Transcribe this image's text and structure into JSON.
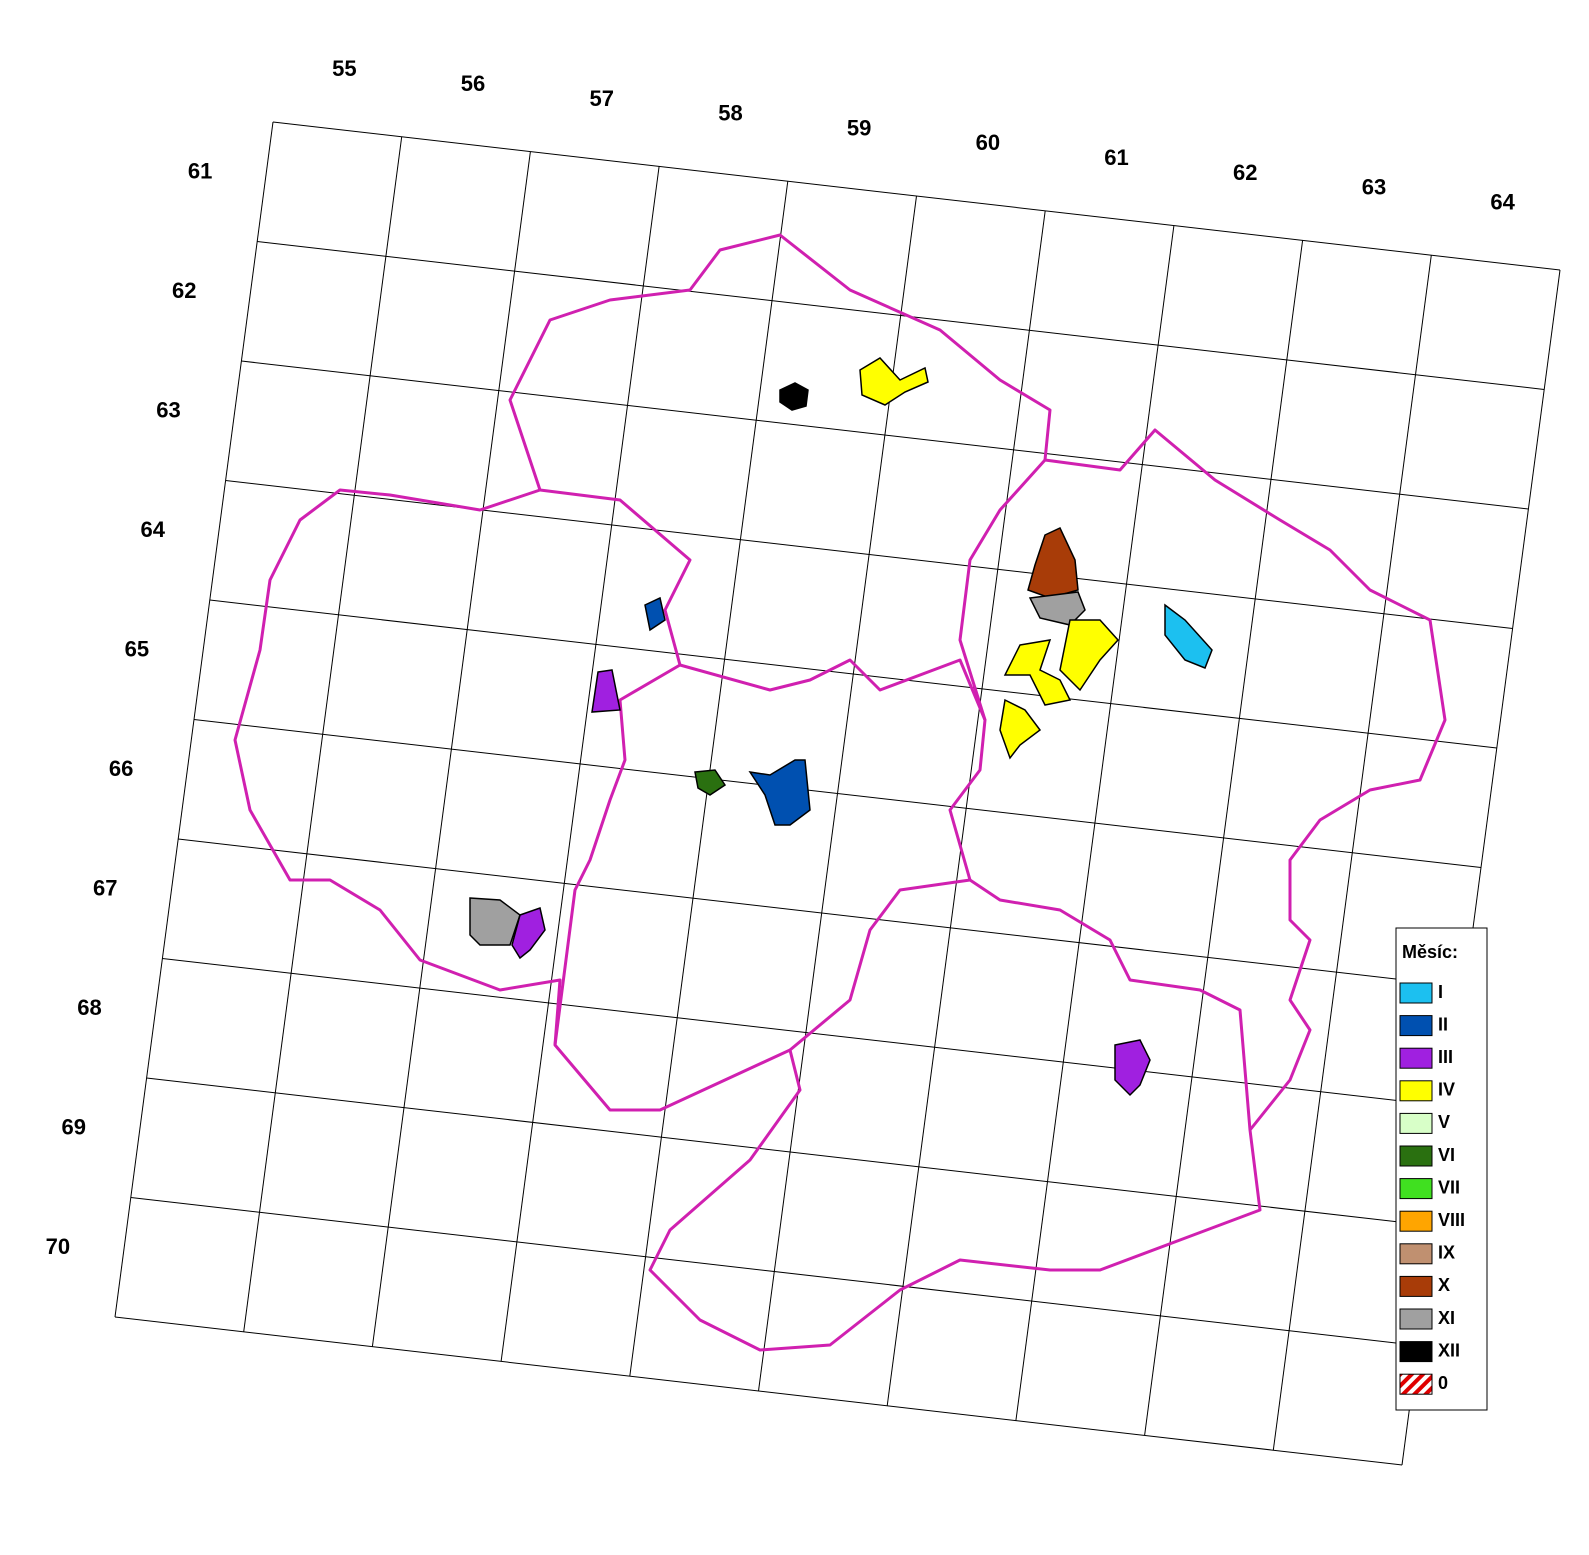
{
  "map": {
    "column_labels": [
      "55",
      "56",
      "57",
      "58",
      "59",
      "60",
      "61",
      "62",
      "63",
      "64"
    ],
    "row_labels": [
      "61",
      "62",
      "63",
      "64",
      "65",
      "66",
      "67",
      "68",
      "69",
      "70"
    ]
  },
  "legend": {
    "title": "Měsíc:",
    "items": [
      {
        "label": "I",
        "color": "#1cc0f0"
      },
      {
        "label": "II",
        "color": "#0050b0"
      },
      {
        "label": "III",
        "color": "#a020e0"
      },
      {
        "label": "IV",
        "color": "#ffff00"
      },
      {
        "label": "V",
        "color": "#d8ffc8"
      },
      {
        "label": "VI",
        "color": "#2a7010"
      },
      {
        "label": "VII",
        "color": "#40e020"
      },
      {
        "label": "VIII",
        "color": "#ffa500"
      },
      {
        "label": "IX",
        "color": "#c09070"
      },
      {
        "label": "X",
        "color": "#a83c08"
      },
      {
        "label": "XI",
        "color": "#a0a0a0"
      },
      {
        "label": "XII",
        "color": "#000000"
      },
      {
        "label": "0",
        "color": "#e00000",
        "hatched": true
      }
    ]
  }
}
